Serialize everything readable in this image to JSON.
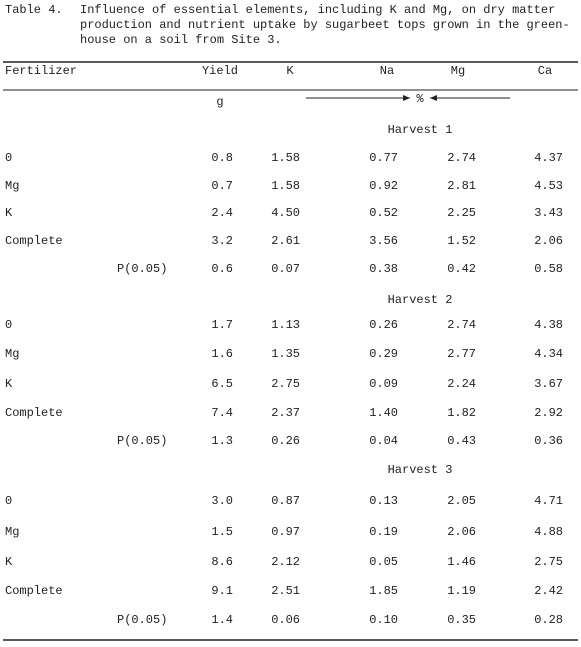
{
  "table": {
    "label": "Table 4.",
    "caption_lines": [
      "Influence of essential elements, including K and Mg, on dry matter",
      "production and nutrient uptake by sugarbeet tops grown in the green-",
      "house on a soil from Site 3."
    ],
    "headers": [
      "Fertilizer",
      "Yield",
      "K",
      "Na",
      "Mg",
      "Ca"
    ],
    "units": {
      "yield": "g",
      "elements": "%"
    },
    "harvests": [
      {
        "name": "Harvest 1",
        "rows": [
          {
            "fertilizer": "0",
            "values": [
              "0.8",
              "1.58",
              "0.77",
              "2.74",
              "4.37"
            ]
          },
          {
            "fertilizer": "Mg",
            "values": [
              "0.7",
              "1.58",
              "0.92",
              "2.81",
              "4.53"
            ]
          },
          {
            "fertilizer": "K",
            "values": [
              "2.4",
              "4.50",
              "0.52",
              "2.25",
              "3.43"
            ]
          },
          {
            "fertilizer": "Complete",
            "values": [
              "3.2",
              "2.61",
              "3.56",
              "1.52",
              "2.06"
            ]
          }
        ],
        "lsd": {
          "label": "P(0.05)",
          "values": [
            "0.6",
            "0.07",
            "0.38",
            "0.42",
            "0.58"
          ]
        }
      },
      {
        "name": "Harvest 2",
        "rows": [
          {
            "fertilizer": "0",
            "values": [
              "1.7",
              "1.13",
              "0.26",
              "2.74",
              "4.38"
            ]
          },
          {
            "fertilizer": "Mg",
            "values": [
              "1.6",
              "1.35",
              "0.29",
              "2.77",
              "4.34"
            ]
          },
          {
            "fertilizer": "K",
            "values": [
              "6.5",
              "2.75",
              "0.09",
              "2.24",
              "3.67"
            ]
          },
          {
            "fertilizer": "Complete",
            "values": [
              "7.4",
              "2.37",
              "1.40",
              "1.82",
              "2.92"
            ]
          }
        ],
        "lsd": {
          "label": "P(0.05)",
          "values": [
            "1.3",
            "0.26",
            "0.04",
            "0.43",
            "0.36"
          ]
        }
      },
      {
        "name": "Harvest 3",
        "rows": [
          {
            "fertilizer": "0",
            "values": [
              "3.0",
              "0.87",
              "0.13",
              "2.05",
              "4.71"
            ]
          },
          {
            "fertilizer": "Mg",
            "values": [
              "1.5",
              "0.97",
              "0.19",
              "2.06",
              "4.88"
            ]
          },
          {
            "fertilizer": "K",
            "values": [
              "8.6",
              "2.12",
              "0.05",
              "1.46",
              "2.75"
            ]
          },
          {
            "fertilizer": "Complete",
            "values": [
              "9.1",
              "2.51",
              "1.85",
              "1.19",
              "2.42"
            ]
          }
        ],
        "lsd": {
          "label": "P(0.05)",
          "values": [
            "1.4",
            "0.06",
            "0.10",
            "0.35",
            "0.28"
          ]
        }
      }
    ]
  }
}
